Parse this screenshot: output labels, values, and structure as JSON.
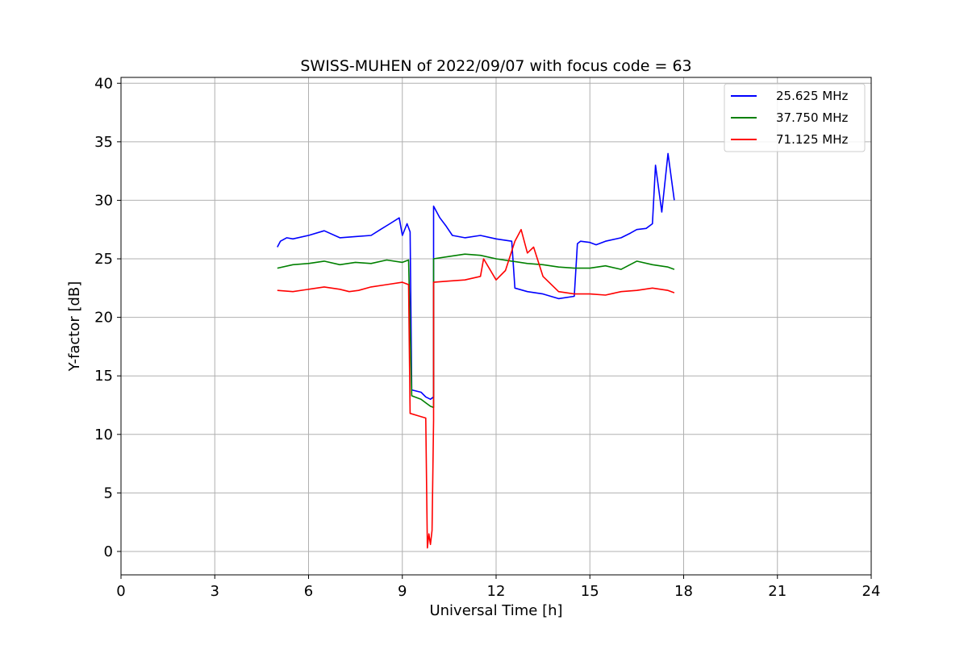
{
  "chart_data": {
    "type": "line",
    "title": "SWISS-MUHEN of 2022/09/07 with focus code = 63",
    "xlabel": "Universal Time [h]",
    "ylabel": "Y-factor [dB]",
    "xlim": [
      0,
      24
    ],
    "ylim": [
      -2,
      40.5
    ],
    "xticks": [
      0,
      3,
      6,
      9,
      12,
      15,
      18,
      21,
      24
    ],
    "yticks": [
      0,
      5,
      10,
      15,
      20,
      25,
      30,
      35,
      40
    ],
    "grid": true,
    "legend_position": "top-right",
    "series": [
      {
        "name": "25.625 MHz",
        "color": "#0000ff",
        "x": [
          5.0,
          5.1,
          5.3,
          5.5,
          6.0,
          6.5,
          7.0,
          7.5,
          8.0,
          8.3,
          8.6,
          8.9,
          9.0,
          9.15,
          9.25,
          9.3,
          9.6,
          9.75,
          9.9,
          10.0,
          10.0,
          10.2,
          10.4,
          10.6,
          11.0,
          11.5,
          12.0,
          12.5,
          12.6,
          13.0,
          13.5,
          14.0,
          14.5,
          14.6,
          14.7,
          15.0,
          15.2,
          15.5,
          16.0,
          16.3,
          16.5,
          16.8,
          17.0,
          17.1,
          17.3,
          17.5,
          17.7
        ],
        "y": [
          26.0,
          26.5,
          26.8,
          26.7,
          27.0,
          27.4,
          26.8,
          26.9,
          27.0,
          27.5,
          28.0,
          28.5,
          27.0,
          28.0,
          27.3,
          13.8,
          13.6,
          13.2,
          13.0,
          13.2,
          29.5,
          28.5,
          27.8,
          27.0,
          26.8,
          27.0,
          26.7,
          26.5,
          22.5,
          22.2,
          22.0,
          21.6,
          21.8,
          26.3,
          26.5,
          26.4,
          26.2,
          26.5,
          26.8,
          27.2,
          27.5,
          27.6,
          28.0,
          33.0,
          29.0,
          34.0,
          30.0
        ]
      },
      {
        "name": "37.750 MHz",
        "color": "#008000",
        "x": [
          5.0,
          5.5,
          6.0,
          6.5,
          7.0,
          7.5,
          8.0,
          8.5,
          9.0,
          9.2,
          9.3,
          9.6,
          9.75,
          9.9,
          10.0,
          10.0,
          10.5,
          11.0,
          11.5,
          12.0,
          12.5,
          13.0,
          13.5,
          14.0,
          14.5,
          15.0,
          15.5,
          16.0,
          16.5,
          17.0,
          17.5,
          17.7
        ],
        "y": [
          24.2,
          24.5,
          24.6,
          24.8,
          24.5,
          24.7,
          24.6,
          24.9,
          24.7,
          24.9,
          13.3,
          13.0,
          12.7,
          12.4,
          12.3,
          25.0,
          25.2,
          25.4,
          25.3,
          25.0,
          24.8,
          24.6,
          24.5,
          24.3,
          24.2,
          24.2,
          24.4,
          24.1,
          24.8,
          24.5,
          24.3,
          24.1
        ]
      },
      {
        "name": "71.125 MHz",
        "color": "#ff0000",
        "x": [
          5.0,
          5.5,
          6.0,
          6.5,
          7.0,
          7.3,
          7.6,
          8.0,
          8.5,
          9.0,
          9.2,
          9.25,
          9.5,
          9.75,
          9.8,
          9.85,
          9.9,
          9.95,
          10.0,
          10.0,
          10.5,
          11.0,
          11.5,
          11.6,
          12.0,
          12.3,
          12.6,
          12.8,
          13.0,
          13.2,
          13.5,
          14.0,
          14.5,
          15.0,
          15.5,
          16.0,
          16.5,
          17.0,
          17.5,
          17.7
        ],
        "y": [
          22.3,
          22.2,
          22.4,
          22.6,
          22.4,
          22.2,
          22.3,
          22.6,
          22.8,
          23.0,
          22.8,
          11.8,
          11.6,
          11.4,
          0.3,
          1.5,
          0.6,
          1.8,
          11.2,
          23.0,
          23.1,
          23.2,
          23.5,
          25.0,
          23.2,
          24.0,
          26.5,
          27.5,
          25.5,
          26.0,
          23.5,
          22.2,
          22.0,
          22.0,
          21.9,
          22.2,
          22.3,
          22.5,
          22.3,
          22.1
        ]
      }
    ]
  }
}
